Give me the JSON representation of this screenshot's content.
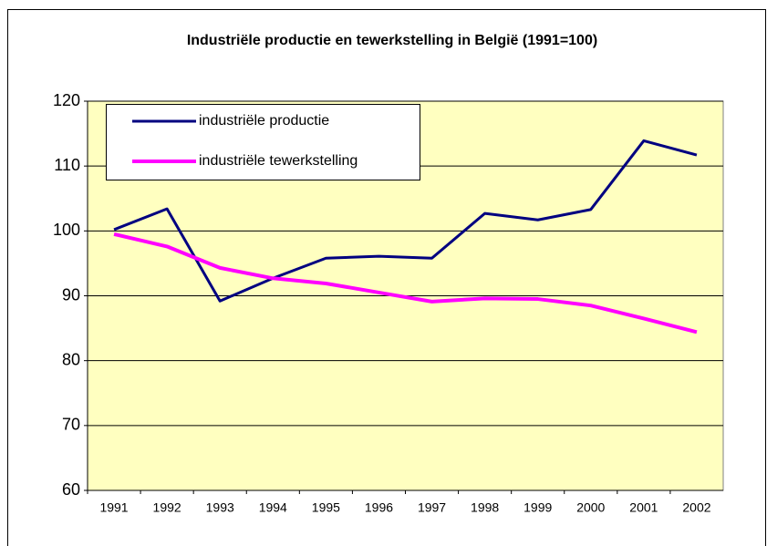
{
  "chart_data": {
    "type": "line",
    "title": "Industriële productie en tewerkstelling in België (1991=100)",
    "categories": [
      "1991",
      "1992",
      "1993",
      "1994",
      "1995",
      "1996",
      "1997",
      "1998",
      "1999",
      "2000",
      "2001",
      "2002"
    ],
    "series": [
      {
        "name": "industriële productie",
        "color": "#000080",
        "values": [
          100.2,
          103.4,
          89.2,
          92.7,
          95.8,
          96.1,
          95.8,
          102.7,
          101.7,
          103.3,
          113.9,
          111.7
        ]
      },
      {
        "name": "industriële tewerkstelling",
        "color": "#ff00ff",
        "values": [
          99.5,
          97.6,
          94.3,
          92.7,
          91.9,
          90.5,
          89.1,
          89.6,
          89.5,
          88.5,
          86.5,
          84.4
        ]
      }
    ],
    "ylim": [
      60,
      120
    ],
    "yticks": [
      60,
      70,
      80,
      90,
      100,
      110,
      120
    ],
    "grid": true,
    "legend": "top-left"
  }
}
